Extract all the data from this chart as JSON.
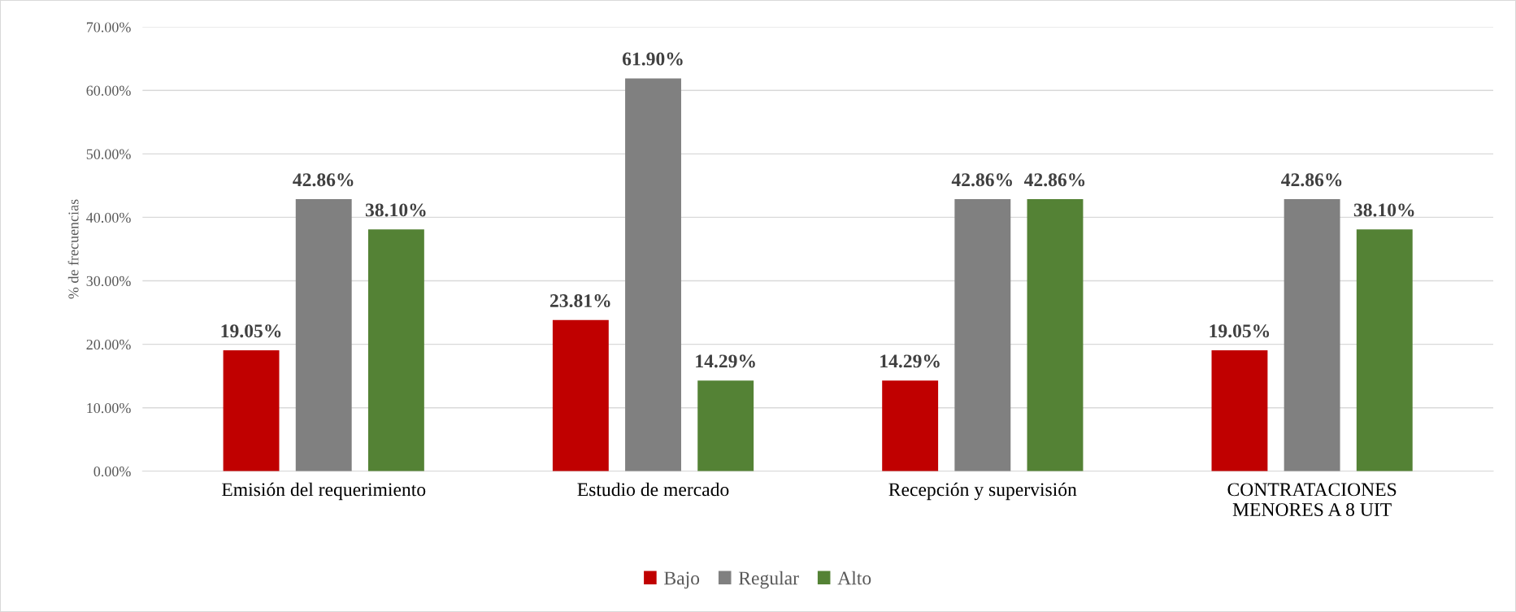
{
  "chart_data": {
    "type": "bar",
    "ylabel": "% de frecuencias",
    "categories": [
      "Emisión del requerimiento",
      "Estudio de mercado",
      "Recepción y supervisión",
      "CONTRATACIONES\nMENORES A 8 UIT"
    ],
    "series": [
      {
        "name": "Bajo",
        "color": "#c00000",
        "values": [
          19.05,
          23.81,
          14.29,
          19.05
        ],
        "value_labels": [
          "19.05%",
          "23.81%",
          "14.29%",
          "19.05%"
        ]
      },
      {
        "name": "Regular",
        "color": "#808080",
        "values": [
          42.86,
          61.9,
          42.86,
          42.86
        ],
        "value_labels": [
          "42.86%",
          "61.90%",
          "42.86%",
          "42.86%"
        ]
      },
      {
        "name": "Alto",
        "color": "#548235",
        "values": [
          38.1,
          14.29,
          42.86,
          38.1
        ],
        "value_labels": [
          "38.10%",
          "14.29%",
          "42.86%",
          "38.10%"
        ]
      }
    ],
    "ylim": [
      0,
      70
    ],
    "yticks": [
      {
        "value": 0,
        "label": "0.00%"
      },
      {
        "value": 10,
        "label": "10.00%"
      },
      {
        "value": 20,
        "label": "20.00%"
      },
      {
        "value": 30,
        "label": "30.00%"
      },
      {
        "value": 40,
        "label": "40.00%"
      },
      {
        "value": 50,
        "label": "50.00%"
      },
      {
        "value": 60,
        "label": "60.00%"
      },
      {
        "value": 70,
        "label": "70.00%"
      }
    ],
    "grid": "y",
    "legend": "bottom"
  }
}
